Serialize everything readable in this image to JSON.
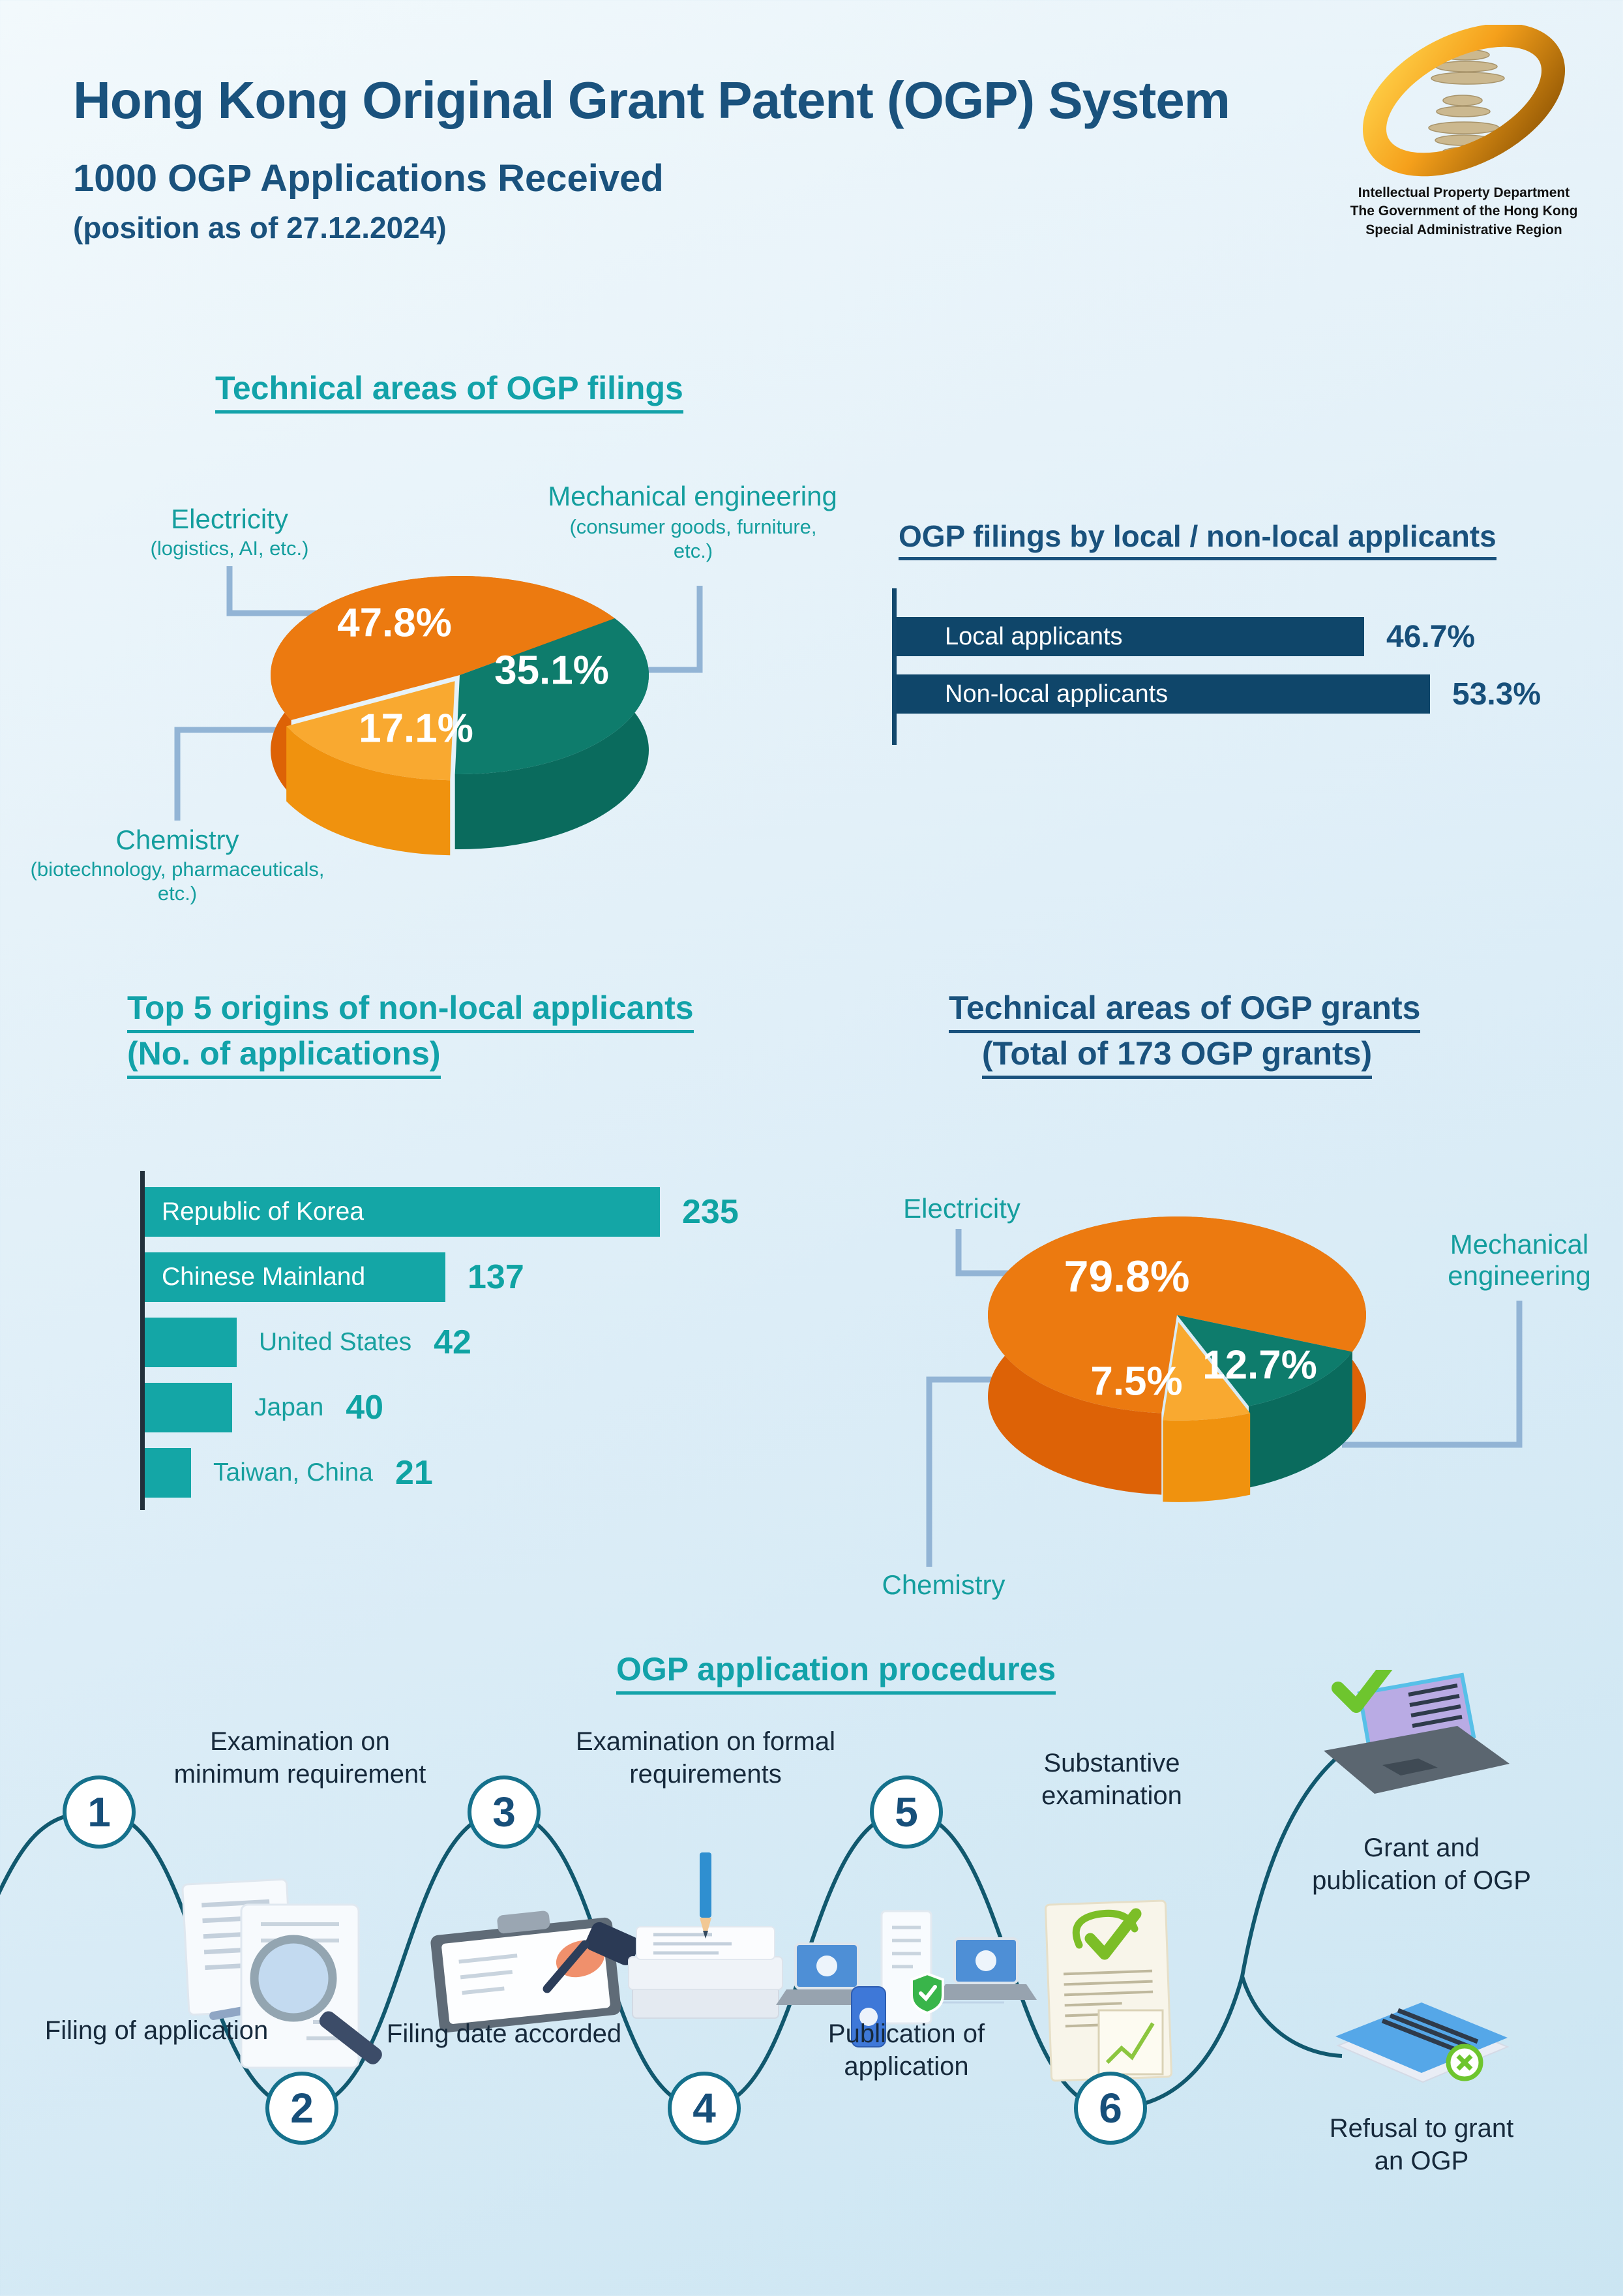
{
  "header": {
    "title": "Hong Kong Original Grant Patent (OGP) System",
    "subtitle": "1000 OGP Applications Received",
    "position_note": "(position as of 27.12.2024)",
    "logo_line1": "Intellectual Property Department",
    "logo_line2": "The Government of the Hong Kong",
    "logo_line3": "Special Administrative Region"
  },
  "filings_pie": {
    "title": "Technical areas of OGP filings",
    "electricity": {
      "name": "Electricity",
      "sub": "(logistics, AI, etc.)",
      "pct": "47.8%"
    },
    "mechanical": {
      "name": "Mechanical engineering",
      "sub": "(consumer goods, furniture, etc.)",
      "pct": "35.1%"
    },
    "chemistry": {
      "name": "Chemistry",
      "sub": "(biotechnology, pharmaceuticals, etc.)",
      "pct": "17.1%"
    }
  },
  "local_bars": {
    "title": "OGP filings by local / non-local applicants",
    "bars": [
      {
        "label": "Local applicants",
        "pct": "46.7%"
      },
      {
        "label": "Non-local applicants",
        "pct": "53.3%"
      }
    ]
  },
  "origins": {
    "title_line1": "Top 5 origins of non-local applicants",
    "title_line2": "(No. of applications)",
    "bars": [
      {
        "label": "Republic of Korea",
        "value": "235"
      },
      {
        "label": "Chinese Mainland",
        "value": "137"
      },
      {
        "label": "United States",
        "value": "42"
      },
      {
        "label": "Japan",
        "value": "40"
      },
      {
        "label": "Taiwan, China",
        "value": "21"
      }
    ]
  },
  "grants_pie": {
    "title_line1": "Technical areas of OGP grants",
    "title_line2": "(Total of 173 OGP grants)",
    "electricity": {
      "name": "Electricity",
      "pct": "79.8%"
    },
    "mechanical": {
      "name": "Mechanical engineering",
      "pct": "12.7%"
    },
    "chemistry": {
      "name": "Chemistry",
      "pct": "7.5%"
    }
  },
  "procedures": {
    "title": "OGP application procedures",
    "steps": [
      {
        "num": "1",
        "label": "Filing of application"
      },
      {
        "num": "2",
        "label": "Examination on minimum requirement"
      },
      {
        "num": "3",
        "label": "Filing date accorded"
      },
      {
        "num": "4",
        "label": "Examination on formal requirements"
      },
      {
        "num": "5",
        "label": "Publication of application"
      },
      {
        "num": "6",
        "label": "Substantive examination"
      }
    ],
    "outcomes": [
      {
        "label": "Grant and publication of OGP"
      },
      {
        "label": "Refusal to grant an OGP"
      }
    ]
  },
  "colors": {
    "navy": "#1A527D",
    "teal_heading": "#12A2A9",
    "bar_navy": "#0F466A",
    "bar_teal": "#14A6A6",
    "pie_orange": "#EC7A10",
    "pie_orange_side": "#DD6206",
    "pie_green": "#0E7C6C",
    "pie_green_side": "#0A6B5D",
    "pie_amber": "#F9A930",
    "pie_amber_side": "#F0920E",
    "leader_line": "#92B4D5",
    "flow_line": "#11586E"
  },
  "chart_data": [
    {
      "type": "pie",
      "title": "Technical areas of OGP filings",
      "labels": [
        "Electricity (logistics, AI, etc.)",
        "Mechanical engineering (consumer goods, furniture, etc.)",
        "Chemistry (biotechnology, pharmaceuticals, etc.)"
      ],
      "values": [
        47.8,
        35.1,
        17.1
      ],
      "unit": "%",
      "colors": [
        "#EC7A10",
        "#0E7C6C",
        "#F9A930"
      ],
      "side_colors": [
        "#DD6206",
        "#0A6B5D",
        "#F0920E"
      ],
      "style": "3d-pie"
    },
    {
      "type": "bar",
      "title": "OGP filings by local / non-local applicants",
      "categories": [
        "Local applicants",
        "Non-local applicants"
      ],
      "values": [
        46.7,
        53.3
      ],
      "unit": "%",
      "orientation": "horizontal",
      "bar_color": "#0F466A"
    },
    {
      "type": "bar",
      "title": "Top 5 origins of non-local applicants (No. of applications)",
      "categories": [
        "Republic of Korea",
        "Chinese Mainland",
        "United States",
        "Japan",
        "Taiwan, China"
      ],
      "values": [
        235,
        137,
        42,
        40,
        21
      ],
      "orientation": "horizontal",
      "bar_color": "#14A6A6"
    },
    {
      "type": "pie",
      "title": "Technical areas of OGP grants (Total of 173 OGP grants)",
      "total_grants": 173,
      "labels": [
        "Electricity",
        "Mechanical engineering",
        "Chemistry"
      ],
      "values": [
        79.8,
        12.7,
        7.5
      ],
      "unit": "%",
      "colors": [
        "#EC7A10",
        "#0E7C6C",
        "#F9A930"
      ],
      "side_colors": [
        "#DD6206",
        "#0A6B5D",
        "#F0920E"
      ],
      "style": "3d-pie"
    }
  ]
}
